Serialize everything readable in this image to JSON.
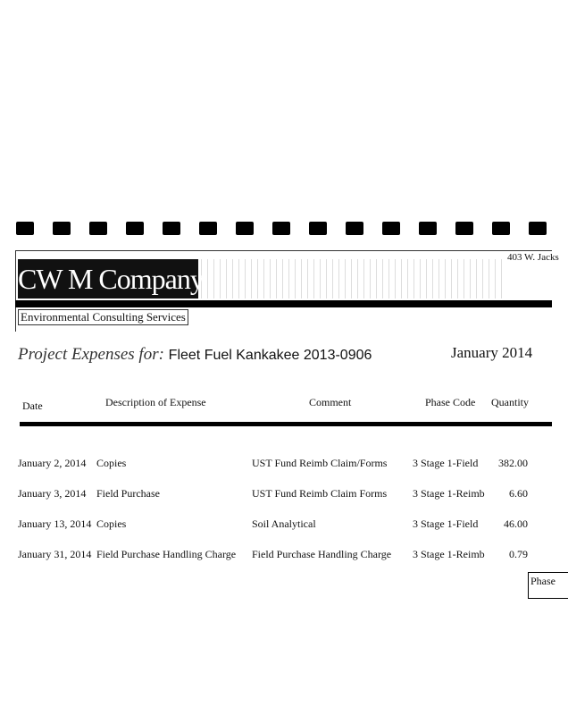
{
  "company": {
    "name": "CW M Company",
    "tagline": "Environmental Consulting Services",
    "address_partial": "403 W. Jacks"
  },
  "title": {
    "prefix": "Project Expenses for:",
    "project": "Fleet Fuel Kankakee 2013-0906",
    "period": "January 2014"
  },
  "columns": [
    "Date",
    "Description of Expense",
    "Comment",
    "Phase Code",
    "Quantity"
  ],
  "rows": [
    {
      "date": "January 2, 2014",
      "description": "Copies",
      "comment": "UST Fund Reimb Claim/Forms",
      "phase": "3 Stage 1-Field",
      "quantity": "382.00"
    },
    {
      "date": "January 3, 2014",
      "description": "Field Purchase",
      "comment": "UST Fund Reimb Claim Forms",
      "phase": "3 Stage 1-Reimb",
      "quantity": "6.60"
    },
    {
      "date": "January 13, 2014",
      "description": "Copies",
      "comment": "Soil Analytical",
      "phase": "3 Stage 1-Field",
      "quantity": "46.00"
    },
    {
      "date": "January 31, 2014",
      "description": "Field Purchase Handling Charge",
      "comment": "Field Purchase Handling Charge",
      "phase": "3 Stage 1-Reimb",
      "quantity": "0.79"
    }
  ],
  "footer_box": "Phase"
}
